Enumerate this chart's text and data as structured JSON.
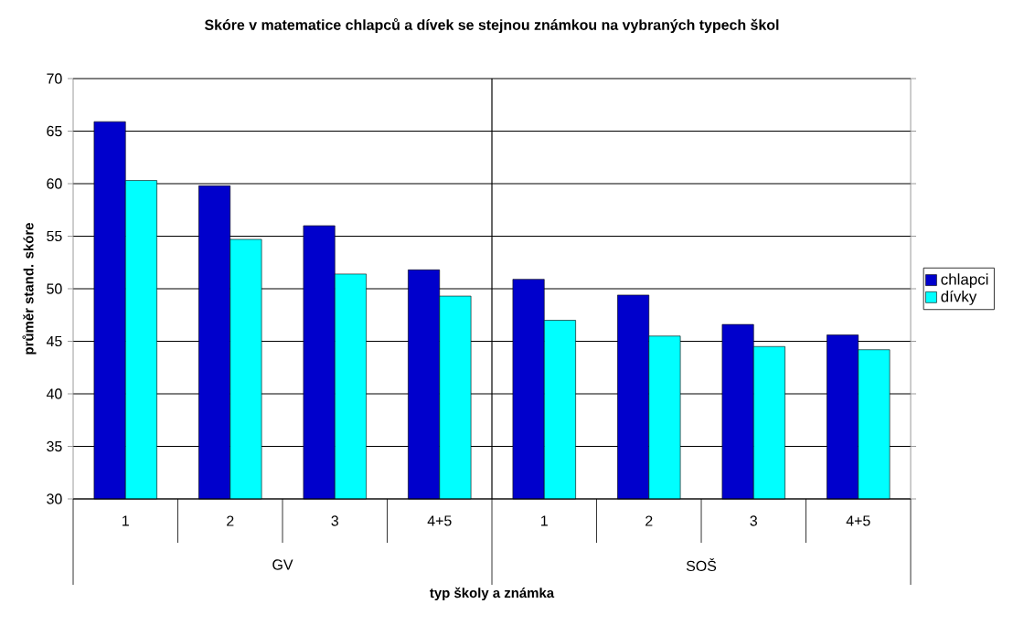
{
  "chart_data": {
    "type": "bar",
    "title": "Skóre v matematice chlapců a dívek se stejnou známkou na vybraných typech škol",
    "xlabel": "typ školy a známka",
    "ylabel": "průměr stand. skóre",
    "categories": [
      "1",
      "2",
      "3",
      "4+5",
      "1",
      "2",
      "3",
      "4+5"
    ],
    "series": [
      {
        "name": "chlapci",
        "color": "#0000cc",
        "values": [
          65.9,
          59.8,
          56.0,
          51.8,
          50.9,
          49.4,
          46.6,
          45.6
        ]
      },
      {
        "name": "dívky",
        "color": "#00ffff",
        "values": [
          60.3,
          54.7,
          51.4,
          49.3,
          47.0,
          45.5,
          44.5,
          44.2
        ]
      }
    ],
    "annotations": [
      "GV",
      "SOŠ"
    ],
    "ylim": [
      30,
      70
    ],
    "yticks": [
      30,
      35,
      40,
      45,
      50,
      55,
      60,
      65,
      70
    ],
    "grid": "y",
    "legend": "right"
  }
}
